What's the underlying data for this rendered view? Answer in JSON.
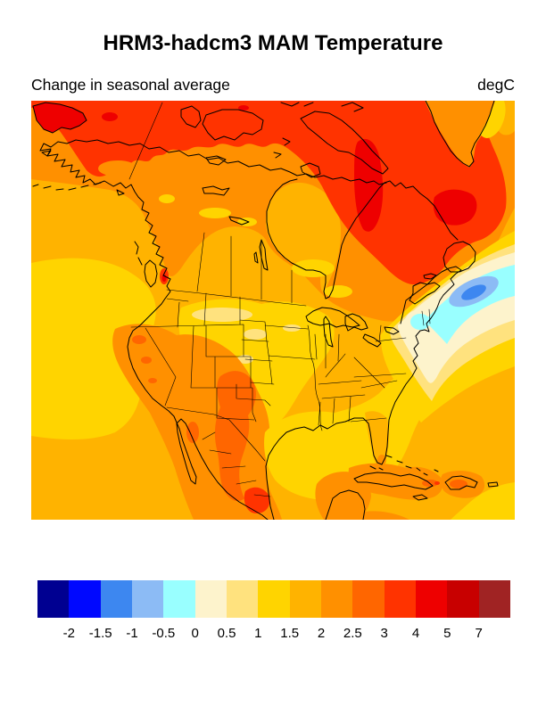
{
  "header": {
    "title": "HRM3-hadcm3 MAM Temperature",
    "subtitle_left": "Change in seasonal average",
    "units_label": "degC"
  },
  "colorbar": {
    "labels": [
      "-2",
      "-1.5",
      "-1",
      "-0.5",
      "0",
      "0.5",
      "1",
      "1.5",
      "2",
      "2.5",
      "3",
      "4",
      "5",
      "7"
    ],
    "colors": [
      "#000091",
      "#0008FF",
      "#3D87F0",
      "#8CBBF5",
      "#99FFFF",
      "#FDF3CC",
      "#FFE27E",
      "#FFD400",
      "#FFB300",
      "#FF9000",
      "#FF6600",
      "#FF3300",
      "#EE0000",
      "#C80000",
      "#A02323"
    ]
  },
  "chart_data": {
    "type": "heatmap",
    "title": "HRM3-hadcm3 MAM Temperature",
    "subtitle": "Change in seasonal average",
    "units": "degC",
    "model": "HRM3-hadcm3",
    "season": "MAM",
    "region": "North America",
    "legend_position": "bottom",
    "colorbar_levels": [
      -2,
      -1.5,
      -1,
      -0.5,
      0,
      0.5,
      1,
      1.5,
      2,
      2.5,
      3,
      4,
      5,
      7
    ],
    "colorbar_colors": [
      "#000091",
      "#0008FF",
      "#3D87F0",
      "#8CBBF5",
      "#99FFFF",
      "#FDF3CC",
      "#FFE27E",
      "#FFD400",
      "#FFB300",
      "#FF9000",
      "#FF6600",
      "#FF3300",
      "#EE0000",
      "#C80000",
      "#A02323"
    ],
    "field_summary": [
      {
        "area": "Arctic coast / northern Canada / interior Alaska",
        "change_degC": "3 to 5"
      },
      {
        "area": "Chukotka (top-left land) and Baffin Bay streak",
        "change_degC": "4 to 5"
      },
      {
        "area": "Labrador / northeastern Quebec and Labrador Sea",
        "change_degC": "3 to 5"
      },
      {
        "area": "Greenland (top-right corner)",
        "change_degC": "2 to 3"
      },
      {
        "area": "Central and western Canada, Hudson Bay",
        "change_degC": "1.5 to 2.5"
      },
      {
        "area": "US central plains",
        "change_degC": "1 to 1.5 with 0.5-1 patches"
      },
      {
        "area": "US Southwest, Texas and Mexico",
        "change_degC": "2.5 to 4"
      },
      {
        "area": "Pacific Ocean offshore",
        "change_degC": "1 to 2"
      },
      {
        "area": "Gulf of Mexico and southeast US coastal waters",
        "change_degC": "1 to 1.5"
      },
      {
        "area": "Northwest Atlantic anomaly east of Nova Scotia",
        "change_degC": "-1.5 to 0 (cool blob)"
      },
      {
        "area": "Caribbean islands (Cuba, Hispaniola)",
        "change_degC": "2.5 to 3"
      }
    ]
  }
}
